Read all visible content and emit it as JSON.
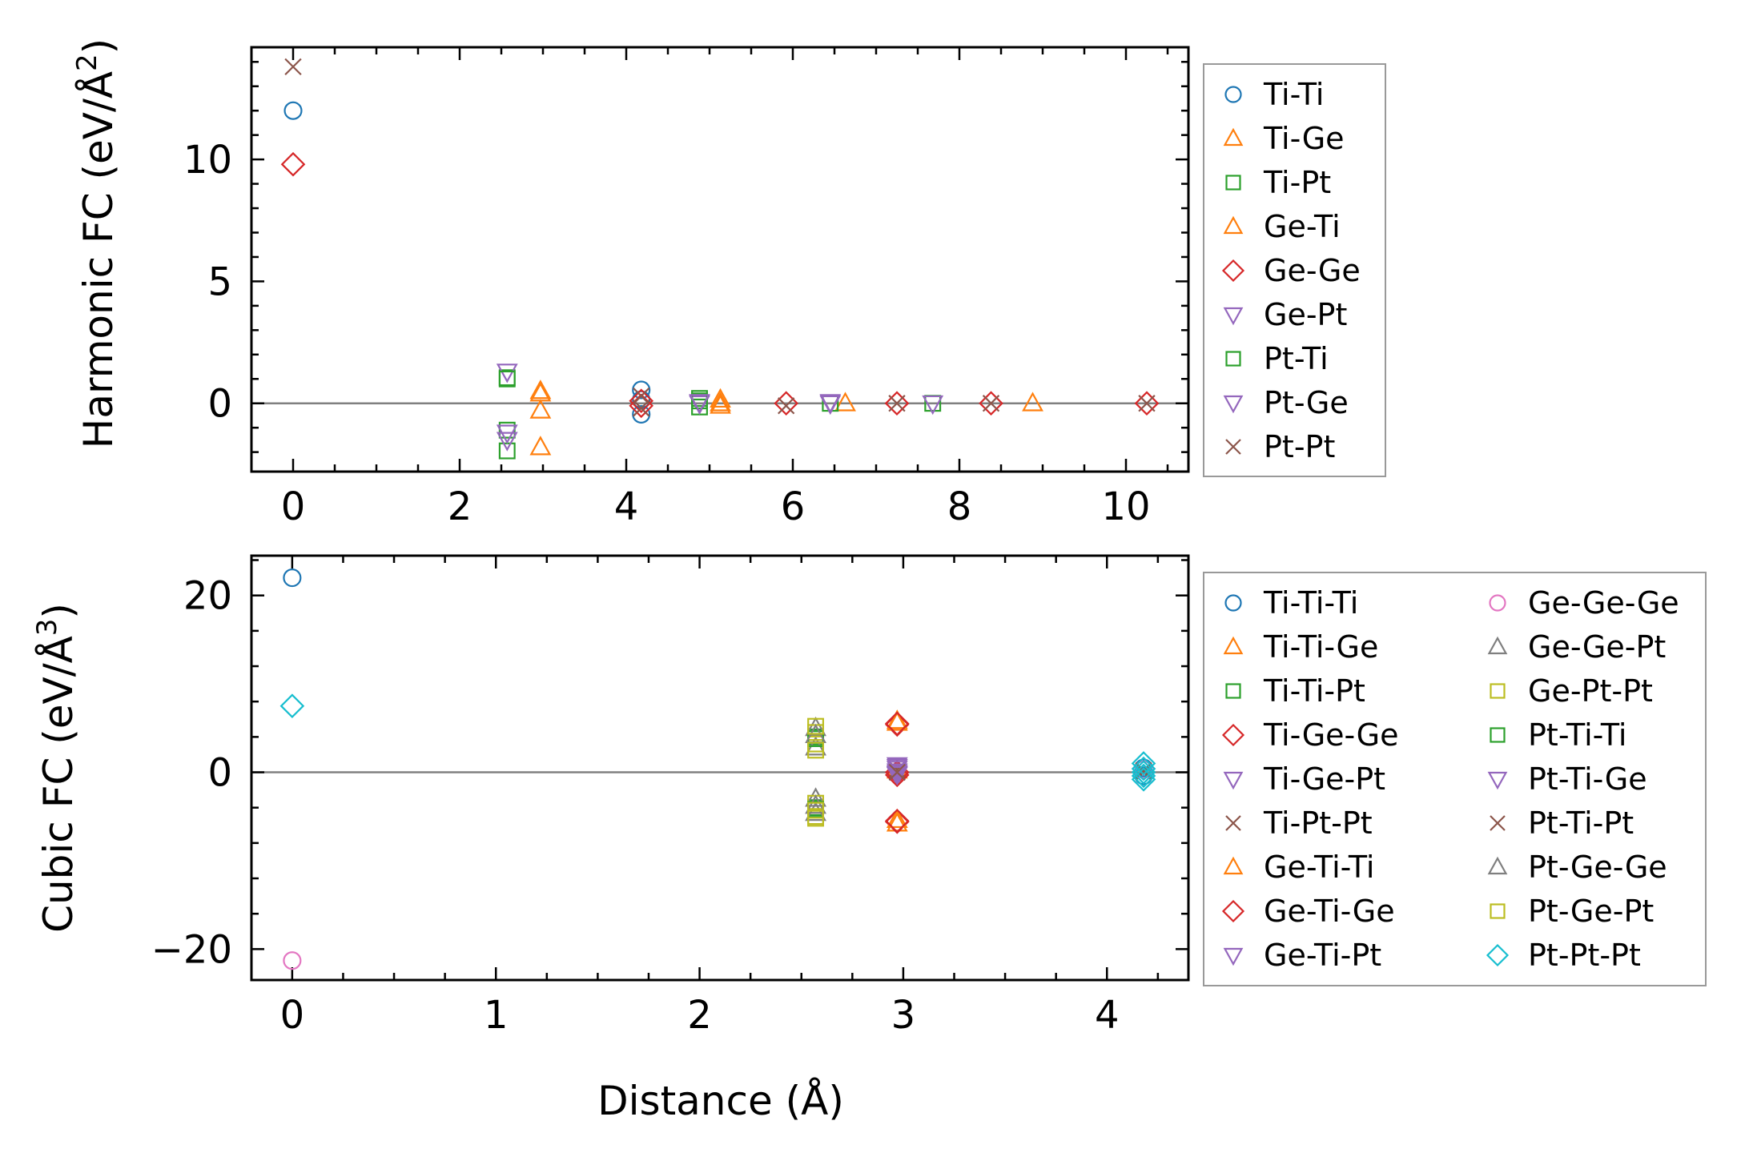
{
  "chart_data": [
    {
      "type": "scatter",
      "ylabel": "Harmonic FC (eV/Å",
      "ylabel_exponent": "2",
      "ylabel_close": ")",
      "xlabel": "",
      "xlim": [
        -0.5,
        10.75
      ],
      "ylim": [
        -2.8,
        14.6
      ],
      "xticks": [
        0,
        2,
        4,
        6,
        8,
        10
      ],
      "yticks": [
        0,
        5,
        10
      ],
      "zero_line": true,
      "legend": {
        "placement": "outside-right",
        "columns": 1
      },
      "series": [
        {
          "name": "Ti-Ti",
          "marker": "circle",
          "color": "#1f77b4",
          "points": [
            [
              0,
              12.0
            ],
            [
              4.18,
              0.55
            ],
            [
              4.18,
              0.15
            ],
            [
              4.18,
              -0.45
            ]
          ]
        },
        {
          "name": "Ti-Ge",
          "marker": "triangle-up",
          "color": "#ff7f0e",
          "points": [
            [
              2.97,
              0.5
            ],
            [
              2.97,
              -0.3
            ],
            [
              2.97,
              -1.8
            ],
            [
              5.13,
              0.15
            ],
            [
              5.13,
              -0.1
            ],
            [
              6.63,
              0.0
            ],
            [
              8.88,
              0.0
            ]
          ]
        },
        {
          "name": "Ti-Pt",
          "marker": "square",
          "color": "#2ca02c",
          "points": [
            [
              2.57,
              1.05
            ],
            [
              2.57,
              -1.1
            ],
            [
              2.57,
              -1.95
            ],
            [
              4.88,
              0.2
            ],
            [
              4.88,
              -0.15
            ],
            [
              6.45,
              0.0
            ],
            [
              7.68,
              0.0
            ]
          ]
        },
        {
          "name": "Ge-Ti",
          "marker": "triangle-up",
          "color": "#ff7f0e",
          "points": [
            [
              2.97,
              0.4
            ],
            [
              5.13,
              0.0
            ]
          ]
        },
        {
          "name": "Ge-Ge",
          "marker": "diamond",
          "color": "#d62728",
          "points": [
            [
              0,
              9.8
            ],
            [
              4.18,
              0.1
            ],
            [
              4.18,
              -0.1
            ],
            [
              5.92,
              0.0
            ],
            [
              7.25,
              0.0
            ],
            [
              8.38,
              0.0
            ],
            [
              10.25,
              0.0
            ]
          ]
        },
        {
          "name": "Ge-Pt",
          "marker": "triangle-down",
          "color": "#9467bd",
          "points": [
            [
              2.57,
              1.3
            ],
            [
              2.57,
              -1.2
            ],
            [
              4.88,
              0.0
            ],
            [
              6.45,
              0.0
            ],
            [
              7.68,
              0.0
            ]
          ]
        },
        {
          "name": "Pt-Ti",
          "marker": "square",
          "color": "#2ca02c",
          "points": [
            [
              2.57,
              1.0
            ],
            [
              4.88,
              0.1
            ]
          ]
        },
        {
          "name": "Pt-Ge",
          "marker": "triangle-down",
          "color": "#9467bd",
          "points": [
            [
              2.57,
              -1.5
            ],
            [
              4.88,
              0.05
            ],
            [
              6.45,
              0.05
            ]
          ]
        },
        {
          "name": "Pt-Pt",
          "marker": "cross",
          "color": "#8c564b",
          "points": [
            [
              0,
              13.8
            ],
            [
              4.18,
              0.3
            ],
            [
              4.18,
              -0.2
            ],
            [
              5.92,
              -0.1
            ],
            [
              7.25,
              0.0
            ],
            [
              8.38,
              0.0
            ],
            [
              10.25,
              0.0
            ]
          ]
        }
      ]
    },
    {
      "type": "scatter",
      "ylabel": "Cubic FC (eV/Å",
      "ylabel_exponent": "3",
      "ylabel_close": ")",
      "xlabel": "Distance (Å)",
      "xlim": [
        -0.2,
        4.4
      ],
      "ylim": [
        -23.5,
        24.5
      ],
      "xticks": [
        0,
        1,
        2,
        3,
        4
      ],
      "yticks": [
        20,
        0,
        -20
      ],
      "zero_line": true,
      "legend": {
        "placement": "outside-right",
        "columns": 2
      },
      "series": [
        {
          "name": "Ti-Ti-Ti",
          "marker": "circle",
          "color": "#1f77b4",
          "points": [
            [
              0,
              22.0
            ],
            [
              4.18,
              0.5
            ],
            [
              4.18,
              -0.4
            ]
          ]
        },
        {
          "name": "Ti-Ti-Ge",
          "marker": "triangle-up",
          "color": "#ff7f0e",
          "points": [
            [
              2.97,
              5.8
            ],
            [
              2.97,
              -5.8
            ],
            [
              2.97,
              0.2
            ]
          ]
        },
        {
          "name": "Ti-Ti-Pt",
          "marker": "square",
          "color": "#2ca02c",
          "points": [
            [
              2.57,
              4.0
            ],
            [
              2.57,
              -4.0
            ]
          ]
        },
        {
          "name": "Ti-Ge-Ge",
          "marker": "diamond",
          "color": "#d62728",
          "points": [
            [
              2.97,
              5.4
            ],
            [
              2.97,
              -5.6
            ],
            [
              2.97,
              0.0
            ]
          ]
        },
        {
          "name": "Ti-Ge-Pt",
          "marker": "triangle-down",
          "color": "#9467bd",
          "points": [
            [
              2.97,
              0.6
            ],
            [
              2.97,
              -0.3
            ]
          ]
        },
        {
          "name": "Ti-Pt-Pt",
          "marker": "cross",
          "color": "#8c564b",
          "points": [
            [
              2.97,
              0.3
            ],
            [
              4.18,
              0.0
            ]
          ]
        },
        {
          "name": "Ge-Ti-Ti",
          "marker": "triangle-up",
          "color": "#ff7f0e",
          "points": [
            [
              2.97,
              5.6
            ],
            [
              2.97,
              -5.4
            ]
          ]
        },
        {
          "name": "Ge-Ti-Ge",
          "marker": "diamond",
          "color": "#d62728",
          "points": [
            [
              2.97,
              5.5
            ],
            [
              2.97,
              -5.5
            ],
            [
              2.97,
              -0.3
            ]
          ]
        },
        {
          "name": "Ge-Ti-Pt",
          "marker": "triangle-down",
          "color": "#9467bd",
          "points": [
            [
              2.97,
              0.8
            ],
            [
              2.97,
              0.1
            ],
            [
              2.97,
              -0.2
            ]
          ]
        },
        {
          "name": "Ge-Ge-Ge",
          "marker": "circle",
          "color": "#e377c2",
          "points": [
            [
              0,
              -21.3
            ],
            [
              4.18,
              0.3
            ]
          ]
        },
        {
          "name": "Ge-Ge-Pt",
          "marker": "triangle-up",
          "color": "#7f7f7f",
          "points": [
            [
              2.57,
              5.0
            ],
            [
              2.57,
              2.8
            ],
            [
              2.57,
              -3.0
            ],
            [
              2.57,
              -4.6
            ]
          ]
        },
        {
          "name": "Ge-Pt-Pt",
          "marker": "square",
          "color": "#bcbd22",
          "points": [
            [
              2.57,
              4.5
            ],
            [
              2.57,
              3.2
            ],
            [
              2.57,
              -3.5
            ],
            [
              2.57,
              -5.0
            ]
          ]
        },
        {
          "name": "Pt-Ti-Ti",
          "marker": "square",
          "color": "#2ca02c",
          "points": [
            [
              2.57,
              3.8
            ],
            [
              2.57,
              -4.2
            ]
          ]
        },
        {
          "name": "Pt-Ti-Ge",
          "marker": "triangle-down",
          "color": "#9467bd",
          "points": [
            [
              2.97,
              0.4
            ],
            [
              2.97,
              -0.1
            ]
          ]
        },
        {
          "name": "Pt-Ti-Pt",
          "marker": "cross",
          "color": "#8c564b",
          "points": [
            [
              2.97,
              0.0
            ],
            [
              4.18,
              0.2
            ]
          ]
        },
        {
          "name": "Pt-Ge-Ge",
          "marker": "triangle-up",
          "color": "#7f7f7f",
          "points": [
            [
              2.57,
              4.2
            ],
            [
              2.57,
              -3.8
            ]
          ]
        },
        {
          "name": "Pt-Ge-Pt",
          "marker": "square",
          "color": "#bcbd22",
          "points": [
            [
              2.57,
              5.2
            ],
            [
              2.57,
              2.5
            ],
            [
              2.57,
              -4.3
            ],
            [
              2.57,
              -5.2
            ]
          ]
        },
        {
          "name": "Pt-Pt-Pt",
          "marker": "diamond",
          "color": "#17becf",
          "points": [
            [
              0,
              7.5
            ],
            [
              4.18,
              1.0
            ],
            [
              4.18,
              0.4
            ],
            [
              4.18,
              0.0
            ],
            [
              4.18,
              -0.4
            ],
            [
              4.18,
              -0.8
            ]
          ]
        }
      ]
    }
  ]
}
